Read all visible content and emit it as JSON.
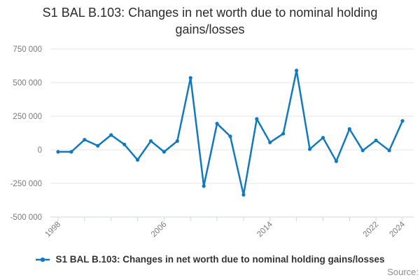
{
  "title": "S1 BAL B.103: Changes in net worth due to nominal holding gains/losses",
  "legend": {
    "label": "S1 BAL B.103: Changes in net worth due to nominal holding gains/losses"
  },
  "source": {
    "label": "Source:"
  },
  "colors": {
    "line": "#1179bd",
    "grid": "#e6e6e6",
    "axis": "#ccd6eb",
    "tick_label": "#7a7a7a",
    "title_text": "#2b2b2b",
    "legend_text": "#333333",
    "source_text": "#8c8c8c",
    "background": "#ffffff"
  },
  "chart_data": {
    "type": "line",
    "title": "S1 BAL B.103: Changes in net worth due to nominal holding gains/losses",
    "x": [
      1998,
      1999,
      2000,
      2001,
      2002,
      2003,
      2004,
      2005,
      2006,
      2007,
      2008,
      2009,
      2010,
      2011,
      2012,
      2013,
      2014,
      2015,
      2016,
      2017,
      2018,
      2019,
      2020,
      2021,
      2022,
      2023,
      2024
    ],
    "series": [
      {
        "name": "S1 BAL B.103: Changes in net worth due to nominal holding gains/losses",
        "values": [
          -15000,
          -15000,
          75000,
          30000,
          110000,
          40000,
          -75000,
          65000,
          -15000,
          65000,
          535000,
          -270000,
          195000,
          100000,
          -335000,
          230000,
          55000,
          120000,
          590000,
          5000,
          90000,
          -85000,
          155000,
          -5000,
          70000,
          -5000,
          215000
        ]
      }
    ],
    "ylim": [
      -500000,
      750000
    ],
    "yticks": [
      750000,
      500000,
      250000,
      0,
      -250000,
      -500000
    ],
    "ytick_format": "space-thousands",
    "xtick_every": 2,
    "xtick_labels": [
      1998,
      2006,
      2014,
      2022,
      2024
    ],
    "xtick_label_rotation": -45,
    "grid": "horizontal-only",
    "legend_position": "bottom",
    "marker": "circle"
  }
}
